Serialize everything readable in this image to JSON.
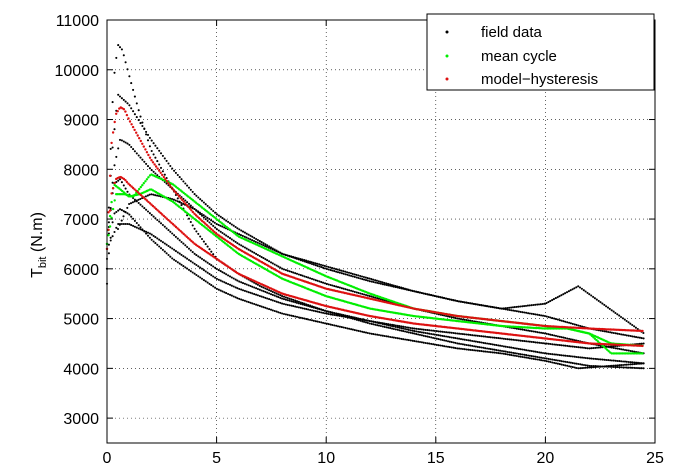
{
  "chart_data": {
    "type": "scatter",
    "title": "",
    "xlabel": "",
    "ylabel": {
      "main": "T",
      "subscript": "bit",
      "unit": " (N.m)"
    },
    "xlim": [
      0,
      25
    ],
    "ylim": [
      2500,
      11000
    ],
    "x_ticks": [
      0,
      5,
      10,
      15,
      20,
      25
    ],
    "y_ticks": [
      3000,
      4000,
      5000,
      6000,
      7000,
      8000,
      9000,
      10000,
      11000
    ],
    "grid": true,
    "legend_position": "top-right",
    "legend": [
      {
        "label": "field data",
        "color": "#000000"
      },
      {
        "label": "mean cycle",
        "color": "#00ee00"
      },
      {
        "label": "model−hysteresis",
        "color": "#dd1111"
      }
    ],
    "series": [
      {
        "name": "field data",
        "color": "#000000",
        "curves": [
          {
            "x": [
              0,
              0.1,
              0.2,
              0.3,
              0.5,
              0.7,
              1,
              1.5,
              2,
              3,
              4,
              5,
              6,
              7,
              8,
              10,
              12,
              14,
              16,
              18,
              20,
              22,
              24.5
            ],
            "y": [
              5700,
              7500,
              8800,
              9800,
              10500,
              10400,
              9900,
              9100,
              8400,
              7600,
              6800,
              6200,
              5900,
              5650,
              5450,
              5150,
              4900,
              4700,
              4500,
              4350,
              4200,
              4050,
              4000
            ]
          },
          {
            "x": [
              0,
              0.2,
              0.5,
              1,
              2,
              3,
              4,
              5,
              6,
              8,
              10,
              12,
              14,
              16,
              18,
              20,
              22,
              24.5
            ],
            "y": [
              6000,
              8200,
              9500,
              9300,
              8600,
              8000,
              7500,
              7100,
              6800,
              6300,
              6000,
              5750,
              5550,
              5350,
              5200,
              5050,
              4800,
              4600
            ]
          },
          {
            "x": [
              0,
              0.3,
              0.6,
              1,
              2,
              3,
              4,
              5,
              6,
              8,
              10,
              12,
              14,
              16,
              18,
              20,
              22,
              24.5
            ],
            "y": [
              6200,
              8000,
              8600,
              8500,
              8000,
              7600,
              7200,
              6800,
              6500,
              6000,
              5700,
              5450,
              5200,
              5000,
              4850,
              4700,
              4500,
              4300
            ]
          },
          {
            "x": [
              0,
              0.3,
              0.6,
              1,
              2,
              3,
              4,
              5,
              6,
              8,
              10,
              12,
              14,
              16,
              18,
              20,
              21.5,
              24.5
            ],
            "y": [
              6000,
              7100,
              7200,
              7100,
              6600,
              6200,
              5900,
              5600,
              5400,
              5100,
              4900,
              4700,
              4550,
              4400,
              4300,
              4150,
              4000,
              4100
            ]
          },
          {
            "x": [
              0,
              0.3,
              0.6,
              1,
              2,
              3,
              4,
              5,
              6,
              8,
              10,
              12,
              14,
              16,
              18,
              20,
              22,
              24.5
            ],
            "y": [
              6500,
              7700,
              7800,
              7500,
              7100,
              6700,
              6300,
              6000,
              5750,
              5400,
              5150,
              4950,
              4750,
              4600,
              4450,
              4300,
              4200,
              4100
            ]
          },
          {
            "x": [
              0.5,
              1,
              2,
              3,
              4,
              5,
              6,
              8,
              10,
              12,
              14,
              16,
              18,
              20,
              21.5,
              24.5
            ],
            "y": [
              6800,
              7300,
              7500,
              7400,
              7200,
              6900,
              6700,
              6300,
              6050,
              5800,
              5550,
              5350,
              5200,
              5300,
              5650,
              4700
            ]
          },
          {
            "x": [
              0,
              0.5,
              1,
              2,
              3,
              4,
              5,
              6,
              8,
              10,
              12,
              14,
              16,
              18,
              20,
              22,
              24.5
            ],
            "y": [
              6400,
              6900,
              6900,
              6700,
              6400,
              6100,
              5800,
              5600,
              5300,
              5100,
              4950,
              4800,
              4700,
              4600,
              4500,
              4400,
              4500
            ]
          }
        ]
      },
      {
        "name": "mean cycle",
        "color": "#00ee00",
        "curves": [
          {
            "x": [
              0,
              0.3,
              0.6,
              1,
              1.5,
              2,
              3,
              4,
              5,
              6,
              8,
              10,
              12,
              14,
              16,
              18,
              20,
              21,
              22,
              23,
              24.5
            ],
            "y": [
              6500,
              7700,
              7600,
              7450,
              7500,
              7600,
              7350,
              7000,
              6650,
              6300,
              5800,
              5450,
              5200,
              5050,
              4950,
              4850,
              4800,
              4800,
              4700,
              4500,
              4450
            ]
          },
          {
            "x": [
              0,
              0.4,
              0.8,
              1.2,
              2,
              3,
              4,
              5,
              6,
              8,
              10,
              12,
              14,
              16,
              18,
              20,
              21,
              22,
              23,
              24.5
            ],
            "y": [
              6500,
              7500,
              7500,
              7450,
              7900,
              7700,
              7350,
              7000,
              6650,
              6250,
              5850,
              5500,
              5200,
              5050,
              4950,
              4850,
              4800,
              4700,
              4300,
              4300
            ]
          }
        ]
      },
      {
        "name": "model−hysteresis",
        "color": "#dd1111",
        "curves": [
          {
            "x": [
              0,
              0.2,
              0.4,
              0.6,
              0.8,
              1,
              1.5,
              2,
              3,
              4,
              5,
              6,
              8,
              10,
              12,
              14,
              16,
              18,
              20,
              22,
              24.5
            ],
            "y": [
              6400,
              8500,
              9100,
              9250,
              9200,
              9000,
              8600,
              8200,
              7600,
              7100,
              6700,
              6400,
              5900,
              5600,
              5400,
              5200,
              5050,
              4950,
              4850,
              4800,
              4750
            ]
          },
          {
            "x": [
              0,
              0.2,
              0.4,
              0.6,
              0.8,
              1,
              1.5,
              2,
              3,
              4,
              5,
              6,
              8,
              10,
              12,
              14,
              16,
              18,
              20,
              22,
              24.5
            ],
            "y": [
              6400,
              7500,
              7800,
              7850,
              7800,
              7700,
              7500,
              7300,
              6900,
              6500,
              6200,
              5900,
              5500,
              5250,
              5050,
              4900,
              4800,
              4700,
              4600,
              4500,
              4450
            ]
          }
        ]
      }
    ]
  }
}
